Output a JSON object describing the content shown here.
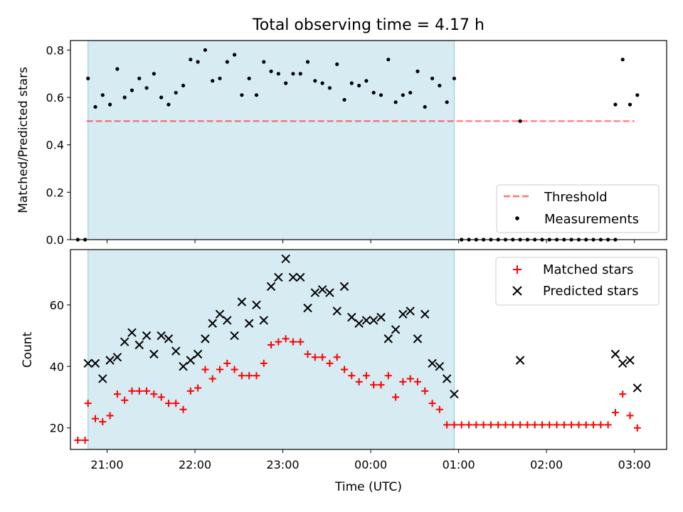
{
  "chart_data": [
    {
      "type": "scatter",
      "title": "Total observing time = 4.17 h",
      "xlabel": "",
      "ylabel": "Matched/Predicted stars",
      "ylim": [
        0,
        0.84
      ],
      "yticks": [
        0.0,
        0.2,
        0.4,
        0.6,
        0.8
      ],
      "ytick_labels": [
        "0.0",
        "0.2",
        "0.4",
        "0.6",
        "0.8"
      ],
      "x_range": [
        "20:35",
        "03:22"
      ],
      "observing_window": [
        "20:47",
        "00:57"
      ],
      "observing_window_color": "#add8e6",
      "threshold": {
        "name": "Threshold",
        "y": 0.5,
        "x_start": "20:46",
        "x_end": "03:00",
        "color": "#ff0000",
        "style": "dashed"
      },
      "legend": {
        "position": "lower-right",
        "entries": [
          "Threshold",
          "Measurements"
        ]
      },
      "series": [
        {
          "name": "Measurements",
          "marker": "dot",
          "color": "#000000",
          "points": [
            [
              "20:40",
              0.0
            ],
            [
              "20:45",
              0.0
            ],
            [
              "20:47",
              0.68
            ],
            [
              "20:52",
              0.56
            ],
            [
              "20:57",
              0.61
            ],
            [
              "21:02",
              0.57
            ],
            [
              "21:07",
              0.72
            ],
            [
              "21:12",
              0.6
            ],
            [
              "21:17",
              0.63
            ],
            [
              "21:22",
              0.68
            ],
            [
              "21:27",
              0.64
            ],
            [
              "21:32",
              0.7
            ],
            [
              "21:37",
              0.6
            ],
            [
              "21:42",
              0.57
            ],
            [
              "21:47",
              0.62
            ],
            [
              "21:52",
              0.65
            ],
            [
              "21:57",
              0.76
            ],
            [
              "22:02",
              0.75
            ],
            [
              "22:07",
              0.8
            ],
            [
              "22:12",
              0.67
            ],
            [
              "22:17",
              0.68
            ],
            [
              "22:22",
              0.75
            ],
            [
              "22:27",
              0.78
            ],
            [
              "22:32",
              0.61
            ],
            [
              "22:37",
              0.68
            ],
            [
              "22:42",
              0.61
            ],
            [
              "22:47",
              0.75
            ],
            [
              "22:52",
              0.71
            ],
            [
              "22:57",
              0.7
            ],
            [
              "23:02",
              0.66
            ],
            [
              "23:07",
              0.7
            ],
            [
              "23:12",
              0.7
            ],
            [
              "23:17",
              0.75
            ],
            [
              "23:22",
              0.67
            ],
            [
              "23:27",
              0.66
            ],
            [
              "23:32",
              0.64
            ],
            [
              "23:37",
              0.74
            ],
            [
              "23:42",
              0.59
            ],
            [
              "23:47",
              0.66
            ],
            [
              "23:52",
              0.65
            ],
            [
              "23:57",
              0.67
            ],
            [
              "00:02",
              0.62
            ],
            [
              "00:07",
              0.61
            ],
            [
              "00:12",
              0.76
            ],
            [
              "00:17",
              0.58
            ],
            [
              "00:22",
              0.61
            ],
            [
              "00:27",
              0.62
            ],
            [
              "00:32",
              0.71
            ],
            [
              "00:37",
              0.56
            ],
            [
              "00:42",
              0.68
            ],
            [
              "00:47",
              0.65
            ],
            [
              "00:52",
              0.58
            ],
            [
              "00:57",
              0.68
            ],
            [
              "01:02",
              0.0
            ],
            [
              "01:07",
              0.0
            ],
            [
              "01:12",
              0.0
            ],
            [
              "01:17",
              0.0
            ],
            [
              "01:22",
              0.0
            ],
            [
              "01:27",
              0.0
            ],
            [
              "01:32",
              0.0
            ],
            [
              "01:37",
              0.0
            ],
            [
              "01:42",
              0.0
            ],
            [
              "01:47",
              0.0
            ],
            [
              "01:52",
              0.0
            ],
            [
              "01:57",
              0.0
            ],
            [
              "02:02",
              0.0
            ],
            [
              "02:07",
              0.0
            ],
            [
              "02:12",
              0.0
            ],
            [
              "02:17",
              0.0
            ],
            [
              "02:22",
              0.0
            ],
            [
              "02:27",
              0.0
            ],
            [
              "02:32",
              0.0
            ],
            [
              "02:37",
              0.0
            ],
            [
              "02:42",
              0.0
            ],
            [
              "02:47",
              0.0
            ],
            [
              "01:42",
              0.5
            ],
            [
              "02:47",
              0.57
            ],
            [
              "02:52",
              0.76
            ],
            [
              "02:57",
              0.57
            ],
            [
              "03:02",
              0.61
            ]
          ]
        }
      ]
    },
    {
      "type": "scatter",
      "title": "",
      "xlabel": "Time (UTC)",
      "ylabel": "Count",
      "ylim": [
        13,
        78
      ],
      "yticks": [
        20,
        40,
        60
      ],
      "ytick_labels": [
        "20",
        "40",
        "60"
      ],
      "x_range": [
        "20:35",
        "03:22"
      ],
      "xticks": [
        "21:00",
        "22:00",
        "23:00",
        "00:00",
        "01:00",
        "02:00",
        "03:00"
      ],
      "observing_window": [
        "20:47",
        "00:57"
      ],
      "observing_window_color": "#add8e6",
      "legend": {
        "position": "top-right",
        "entries": [
          "Matched stars",
          "Predicted stars"
        ]
      },
      "series": [
        {
          "name": "Matched stars",
          "marker": "plus",
          "color": "#ff0000",
          "points": [
            [
              "20:40",
              16
            ],
            [
              "20:45",
              16
            ],
            [
              "20:47",
              28
            ],
            [
              "20:52",
              23
            ],
            [
              "20:57",
              22
            ],
            [
              "21:02",
              24
            ],
            [
              "21:07",
              31
            ],
            [
              "21:12",
              29
            ],
            [
              "21:17",
              32
            ],
            [
              "21:22",
              32
            ],
            [
              "21:27",
              32
            ],
            [
              "21:32",
              31
            ],
            [
              "21:37",
              30
            ],
            [
              "21:42",
              28
            ],
            [
              "21:47",
              28
            ],
            [
              "21:52",
              26
            ],
            [
              "21:57",
              32
            ],
            [
              "22:02",
              33
            ],
            [
              "22:07",
              39
            ],
            [
              "22:12",
              36
            ],
            [
              "22:17",
              39
            ],
            [
              "22:22",
              41
            ],
            [
              "22:27",
              39
            ],
            [
              "22:32",
              37
            ],
            [
              "22:37",
              37
            ],
            [
              "22:42",
              37
            ],
            [
              "22:47",
              41
            ],
            [
              "22:52",
              47
            ],
            [
              "22:57",
              48
            ],
            [
              "23:02",
              49
            ],
            [
              "23:07",
              48
            ],
            [
              "23:12",
              48
            ],
            [
              "23:17",
              44
            ],
            [
              "23:22",
              43
            ],
            [
              "23:27",
              43
            ],
            [
              "23:32",
              41
            ],
            [
              "23:37",
              43
            ],
            [
              "23:42",
              39
            ],
            [
              "23:47",
              37
            ],
            [
              "23:52",
              35
            ],
            [
              "23:57",
              37
            ],
            [
              "00:02",
              34
            ],
            [
              "00:07",
              34
            ],
            [
              "00:12",
              37
            ],
            [
              "00:17",
              30
            ],
            [
              "00:22",
              35
            ],
            [
              "00:27",
              36
            ],
            [
              "00:32",
              35
            ],
            [
              "00:37",
              32
            ],
            [
              "00:42",
              28
            ],
            [
              "00:47",
              26
            ],
            [
              "00:52",
              21
            ],
            [
              "00:57",
              21
            ],
            [
              "01:02",
              21
            ],
            [
              "01:07",
              21
            ],
            [
              "01:12",
              21
            ],
            [
              "01:17",
              21
            ],
            [
              "01:22",
              21
            ],
            [
              "01:27",
              21
            ],
            [
              "01:32",
              21
            ],
            [
              "01:37",
              21
            ],
            [
              "01:42",
              21
            ],
            [
              "01:47",
              21
            ],
            [
              "01:52",
              21
            ],
            [
              "01:57",
              21
            ],
            [
              "02:02",
              21
            ],
            [
              "02:07",
              21
            ],
            [
              "02:12",
              21
            ],
            [
              "02:17",
              21
            ],
            [
              "02:22",
              21
            ],
            [
              "02:27",
              21
            ],
            [
              "02:32",
              21
            ],
            [
              "02:37",
              21
            ],
            [
              "02:42",
              21
            ],
            [
              "02:47",
              25
            ],
            [
              "02:52",
              31
            ],
            [
              "02:57",
              24
            ],
            [
              "03:02",
              20
            ]
          ]
        },
        {
          "name": "Predicted stars",
          "marker": "x",
          "color": "#000000",
          "points": [
            [
              "20:47",
              41
            ],
            [
              "20:52",
              41
            ],
            [
              "20:57",
              36
            ],
            [
              "21:02",
              42
            ],
            [
              "21:07",
              43
            ],
            [
              "21:12",
              48
            ],
            [
              "21:17",
              51
            ],
            [
              "21:22",
              47
            ],
            [
              "21:27",
              50
            ],
            [
              "21:32",
              44
            ],
            [
              "21:37",
              50
            ],
            [
              "21:42",
              49
            ],
            [
              "21:47",
              45
            ],
            [
              "21:52",
              40
            ],
            [
              "21:57",
              42
            ],
            [
              "22:02",
              44
            ],
            [
              "22:07",
              49
            ],
            [
              "22:12",
              54
            ],
            [
              "22:17",
              57
            ],
            [
              "22:22",
              55
            ],
            [
              "22:27",
              50
            ],
            [
              "22:32",
              61
            ],
            [
              "22:37",
              54
            ],
            [
              "22:42",
              60
            ],
            [
              "22:47",
              55
            ],
            [
              "22:52",
              66
            ],
            [
              "22:57",
              69
            ],
            [
              "23:02",
              75
            ],
            [
              "23:07",
              69
            ],
            [
              "23:12",
              69
            ],
            [
              "23:17",
              59
            ],
            [
              "23:22",
              64
            ],
            [
              "23:27",
              65
            ],
            [
              "23:32",
              64
            ],
            [
              "23:37",
              58
            ],
            [
              "23:42",
              66
            ],
            [
              "23:47",
              56
            ],
            [
              "23:52",
              54
            ],
            [
              "23:57",
              55
            ],
            [
              "00:02",
              55
            ],
            [
              "00:07",
              56
            ],
            [
              "00:12",
              49
            ],
            [
              "00:17",
              52
            ],
            [
              "00:22",
              57
            ],
            [
              "00:27",
              58
            ],
            [
              "00:32",
              49
            ],
            [
              "00:37",
              57
            ],
            [
              "00:42",
              41
            ],
            [
              "00:47",
              40
            ],
            [
              "00:52",
              36
            ],
            [
              "00:57",
              31
            ],
            [
              "01:42",
              42
            ],
            [
              "02:47",
              44
            ],
            [
              "02:52",
              41
            ],
            [
              "02:57",
              42
            ],
            [
              "03:02",
              33
            ]
          ]
        }
      ]
    }
  ]
}
